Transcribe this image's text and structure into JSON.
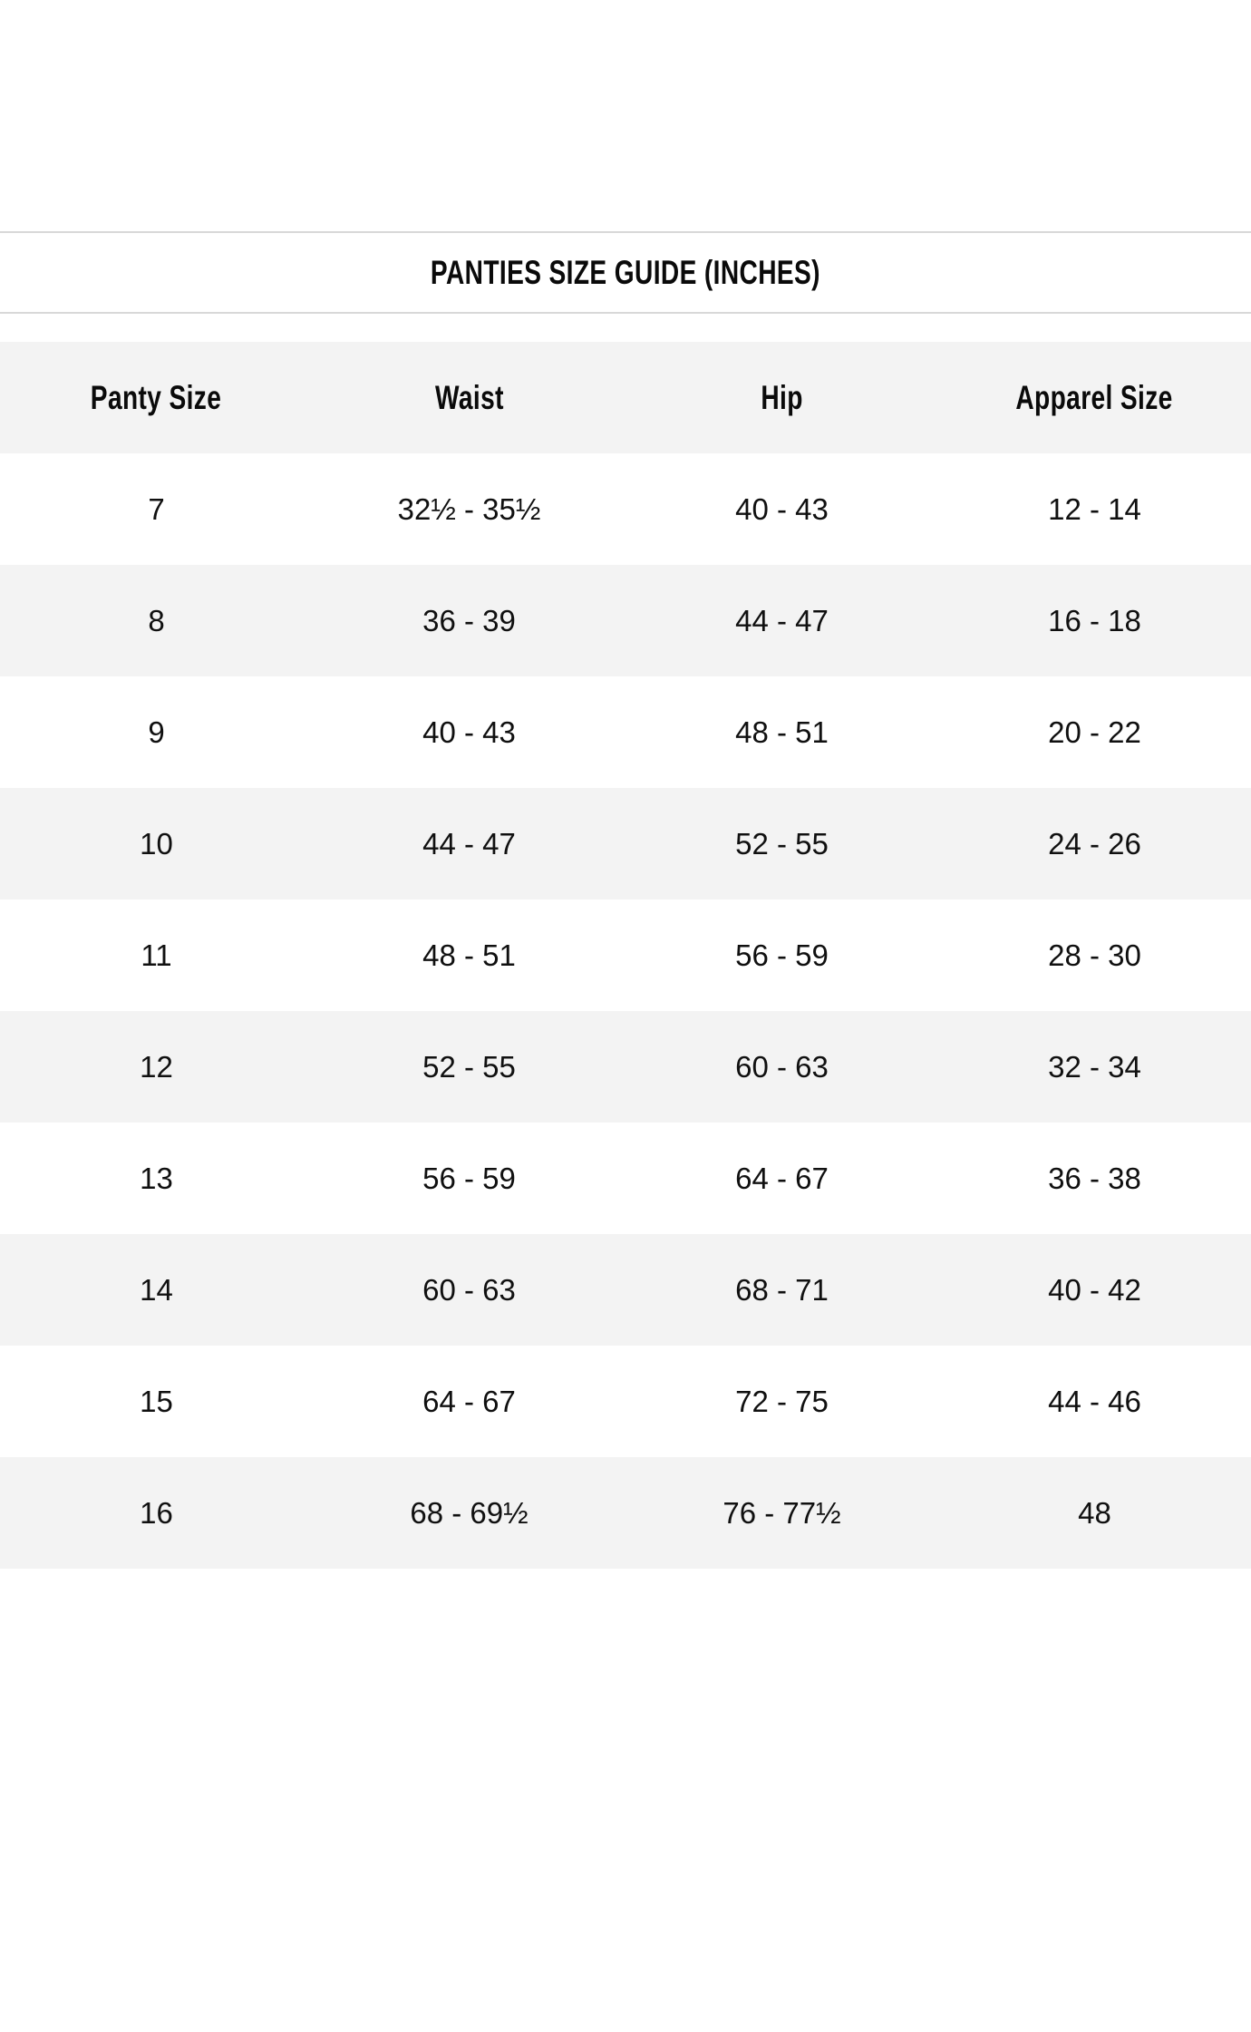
{
  "size_guide": {
    "title": "PANTIES SIZE GUIDE (INCHES)",
    "table": {
      "columns": [
        "Panty Size",
        "Waist",
        "Hip",
        "Apparel Size"
      ],
      "rows": [
        [
          "7",
          "32½ - 35½",
          "40 - 43",
          "12 - 14"
        ],
        [
          "8",
          "36 - 39",
          "44 - 47",
          "16 - 18"
        ],
        [
          "9",
          "40 - 43",
          "48 - 51",
          "20 - 22"
        ],
        [
          "10",
          "44 - 47",
          "52 - 55",
          "24 - 26"
        ],
        [
          "11",
          "48 - 51",
          "56 - 59",
          "28 - 30"
        ],
        [
          "12",
          "52 - 55",
          "60 - 63",
          "32 - 34"
        ],
        [
          "13",
          "56 - 59",
          "64 - 67",
          "36 - 38"
        ],
        [
          "14",
          "60 - 63",
          "68 - 71",
          "40 - 42"
        ],
        [
          "15",
          "64 - 67",
          "72 - 75",
          "44 - 46"
        ],
        [
          "16",
          "68 - 69½",
          "76 - 77½",
          "48"
        ]
      ]
    },
    "colors": {
      "page_background": "#ffffff",
      "shaded_row_background": "#f3f3f3",
      "divider": "#d8d8d8",
      "text": "#0d0d0d"
    }
  }
}
